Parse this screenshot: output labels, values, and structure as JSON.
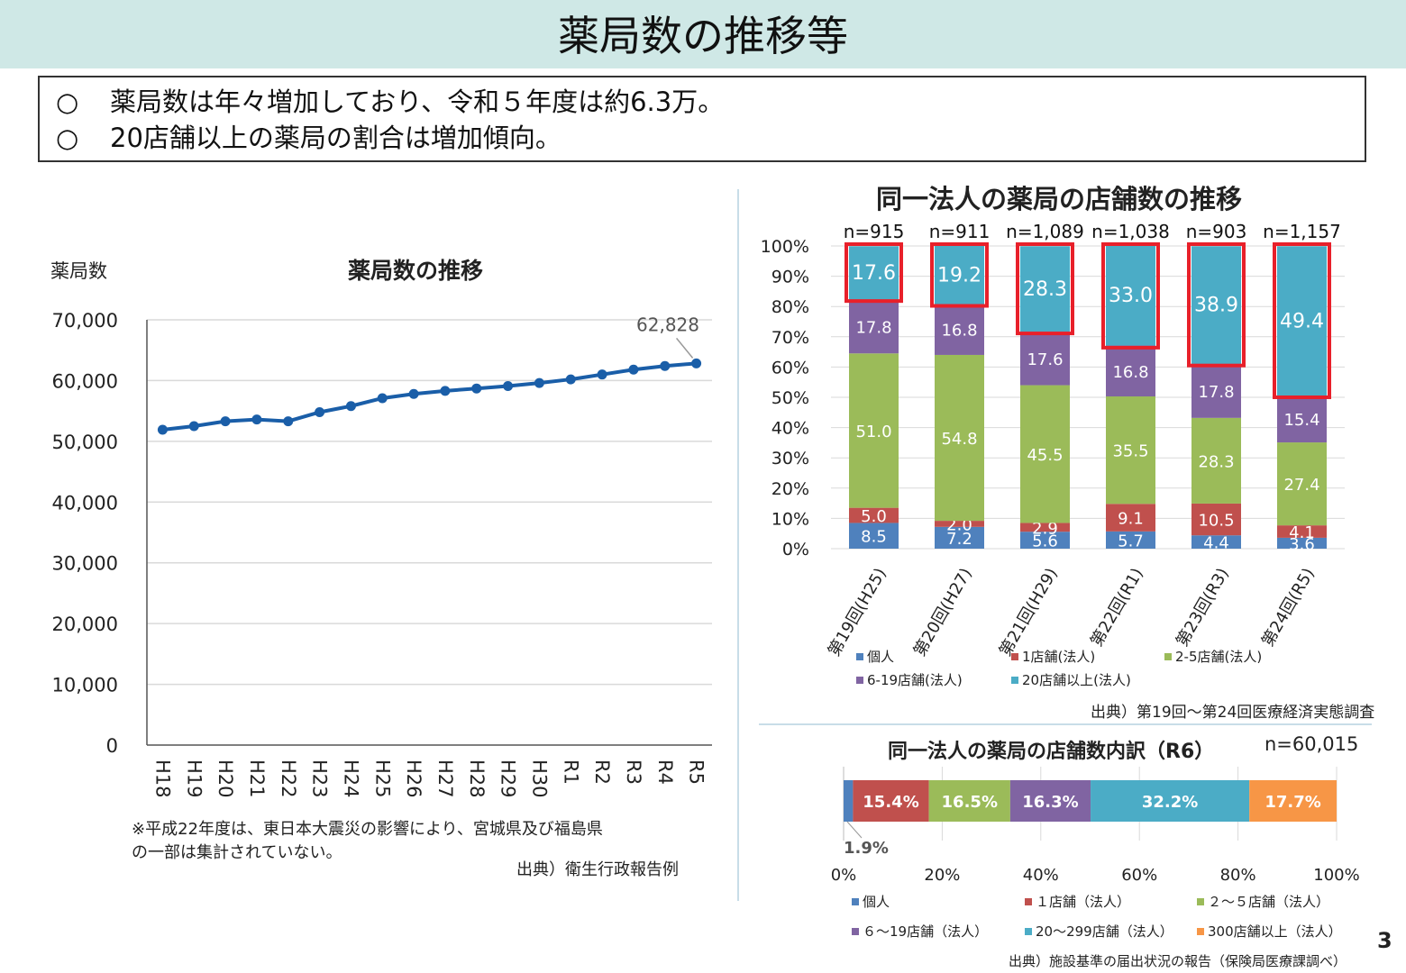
{
  "page": {
    "title": "薬局数の推移等",
    "summary": [
      {
        "marker": "○",
        "text": "薬局数は年々増加しており、令和５年度は約6.3万。"
      },
      {
        "marker": "○",
        "text": "20店舗以上の薬局の割合は増加傾向。"
      }
    ],
    "page_number": "3"
  },
  "left_chart": {
    "title": "薬局数の推移",
    "ylabel": "薬局数",
    "callout": "62,828",
    "note_line1": "※平成22年度は、東日本大震災の影響により、宮城県及び福島県",
    "note_line2": "の一部は集計されていない。",
    "source": "出典）衛生行政報告例",
    "line_color": "#1a5ea8"
  },
  "mid_chart": {
    "title": "同一法人の薬局の店舗数の推移",
    "source": "出典）第19回～第24回医療経済実態調査",
    "highlight_color": "#e8202a"
  },
  "bottom_chart": {
    "title": "同一法人の薬局の店舗数内訳（R6）",
    "n_label": "n=60,015",
    "callout": "1.9%",
    "source": "出典）施設基準の届出状況の報告（保険局医療課調べ）"
  },
  "chart_data": [
    {
      "type": "line",
      "title": "薬局数の推移",
      "ylabel": "薬局数",
      "xlabel": "",
      "ylim": [
        0,
        70000
      ],
      "yticks": [
        0,
        10000,
        20000,
        30000,
        40000,
        50000,
        60000,
        70000
      ],
      "ytick_labels": [
        "0",
        "10,000",
        "20,000",
        "30,000",
        "40,000",
        "50,000",
        "60,000",
        "70,000"
      ],
      "grid": true,
      "categories": [
        "H18",
        "H19",
        "H20",
        "H21",
        "H22",
        "H23",
        "H24",
        "H25",
        "H26",
        "H27",
        "H28",
        "H29",
        "H30",
        "R1",
        "R2",
        "R3",
        "R4",
        "R5"
      ],
      "values": [
        51900,
        52500,
        53300,
        53600,
        53300,
        54800,
        55800,
        57100,
        57800,
        58300,
        58700,
        59100,
        59600,
        60200,
        61000,
        61800,
        62400,
        62828
      ]
    },
    {
      "type": "bar",
      "stacked": true,
      "title": "同一法人の薬局の店舗数の推移",
      "categories": [
        "第19回(H25)",
        "第20回(H27)",
        "第21回(H29)",
        "第22回(R1)",
        "第23回(R3)",
        "第24回(R5)"
      ],
      "n_labels": [
        "n=915",
        "n=911",
        "n=1,089",
        "n=1,038",
        "n=903",
        "n=1,157"
      ],
      "ylim": [
        0,
        100
      ],
      "ytick_labels": [
        "0%",
        "10%",
        "20%",
        "30%",
        "40%",
        "50%",
        "60%",
        "70%",
        "80%",
        "90%",
        "100%"
      ],
      "grid": true,
      "legend_position": "bottom",
      "series": [
        {
          "name": "個人",
          "color": "#4f81bd",
          "values": [
            8.5,
            7.2,
            5.6,
            5.7,
            4.4,
            3.6
          ]
        },
        {
          "name": "1店舗(法人)",
          "color": "#c0504d",
          "values": [
            5.0,
            2.0,
            2.9,
            9.1,
            10.5,
            4.1
          ]
        },
        {
          "name": "2-5店舗(法人)",
          "color": "#9bbb59",
          "values": [
            51.0,
            54.8,
            45.5,
            35.5,
            28.3,
            27.4
          ]
        },
        {
          "name": "6-19店舗(法人)",
          "color": "#8064a2",
          "values": [
            17.8,
            16.8,
            17.6,
            16.8,
            17.8,
            15.4
          ]
        },
        {
          "name": "20店舗以上(法人)",
          "color": "#4bacc6",
          "values": [
            17.6,
            19.2,
            28.3,
            33.0,
            38.9,
            49.4
          ]
        }
      ]
    },
    {
      "type": "bar",
      "stacked": true,
      "orientation": "horizontal",
      "title": "同一法人の薬局の店舗数内訳（R6）",
      "xlim": [
        0,
        100
      ],
      "xtick_labels": [
        "0%",
        "20%",
        "40%",
        "60%",
        "80%",
        "100%"
      ],
      "legend_position": "bottom",
      "series": [
        {
          "name": "個人",
          "color": "#4f81bd",
          "values": [
            1.9
          ],
          "label": "1.9%"
        },
        {
          "name": "１店舗（法人）",
          "color": "#c0504d",
          "values": [
            15.4
          ],
          "label": "15.4%"
        },
        {
          "name": "２～５店舗（法人）",
          "color": "#9bbb59",
          "values": [
            16.5
          ],
          "label": "16.5%"
        },
        {
          "name": "６～19店舗（法人）",
          "color": "#8064a2",
          "values": [
            16.3
          ],
          "label": "16.3%"
        },
        {
          "name": "20～299店舗（法人）",
          "color": "#4bacc6",
          "values": [
            32.2
          ],
          "label": "32.2%"
        },
        {
          "name": "300店舗以上（法人）",
          "color": "#f79646",
          "values": [
            17.7
          ],
          "label": "17.7%"
        }
      ]
    }
  ]
}
